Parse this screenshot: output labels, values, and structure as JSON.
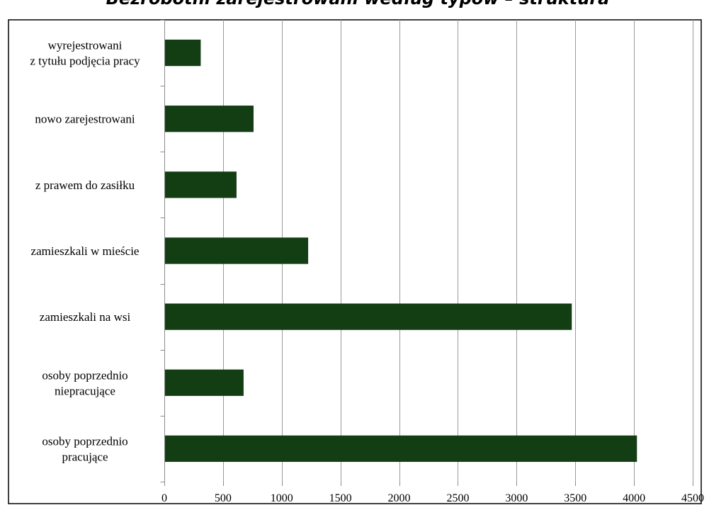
{
  "chart_data": {
    "type": "bar",
    "orientation": "horizontal",
    "title": "Bezrobotni zarejestrowani według typów – struktura",
    "categories": [
      [
        "wyrejestrowani",
        "z tytułu podjęcia pracy"
      ],
      [
        "nowo zarejestrowani"
      ],
      [
        "z prawem do zasiłku"
      ],
      [
        "zamieszkali w mieście"
      ],
      [
        "zamieszkali na wsi"
      ],
      [
        "osoby poprzednio",
        "niepracujące"
      ],
      [
        "osoby poprzednio",
        "pracujące"
      ]
    ],
    "values": [
      310,
      760,
      615,
      1225,
      3470,
      675,
      4025
    ],
    "xlim": [
      0,
      4500
    ],
    "xticks": [
      0,
      500,
      1000,
      1500,
      2000,
      2500,
      3000,
      3500,
      4000,
      4500
    ],
    "grid": true,
    "legend": "none",
    "xlabel": "",
    "ylabel": "",
    "colors": {
      "bar": "#133d13",
      "grid": "#9a9a9a",
      "frame": "#000000"
    }
  }
}
